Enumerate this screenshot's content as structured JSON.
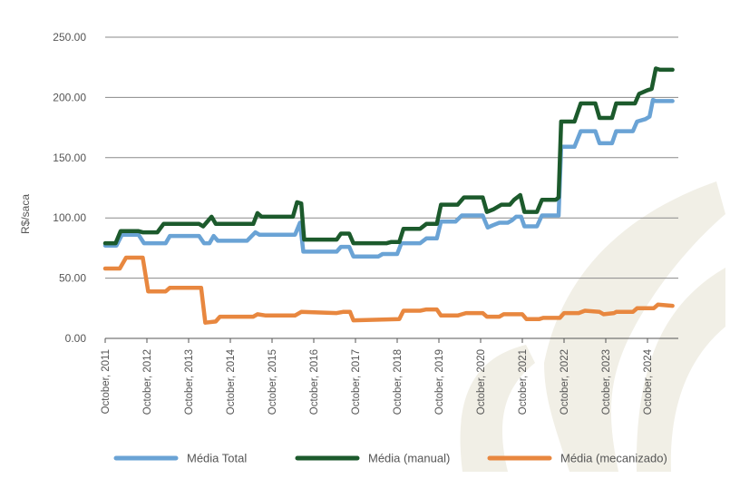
{
  "chart_data": {
    "type": "line",
    "ylabel": "R$/saca",
    "xlabel": "",
    "ylim": [
      0,
      250
    ],
    "yticks": [
      "250.00",
      "200.00",
      "150.00",
      "100.00",
      "50.00",
      "0.00"
    ],
    "x_tick_labels": [
      "October, 2011",
      "October, 2012",
      "October, 2013",
      "October, 2014",
      "October, 2015",
      "October, 2016",
      "October, 2017",
      "October, 2018",
      "October, 2019",
      "October, 2020",
      "October, 2021",
      "October, 2022",
      "October, 2023",
      "October, 2024"
    ],
    "x_range": [
      2011.75,
      2025.4
    ],
    "grid": "horizontal",
    "legend_position": "bottom",
    "series": [
      {
        "name": "Média Total",
        "color": "#6aa3d5",
        "points": [
          [
            2011.75,
            77
          ],
          [
            2012.02,
            77
          ],
          [
            2012.15,
            86
          ],
          [
            2012.55,
            86
          ],
          [
            2012.68,
            79
          ],
          [
            2013.2,
            79
          ],
          [
            2013.3,
            85
          ],
          [
            2014.0,
            85
          ],
          [
            2014.12,
            79
          ],
          [
            2014.25,
            79
          ],
          [
            2014.35,
            85
          ],
          [
            2014.45,
            81
          ],
          [
            2015.0,
            81
          ],
          [
            2015.15,
            81
          ],
          [
            2015.35,
            88
          ],
          [
            2015.45,
            86
          ],
          [
            2016.3,
            86
          ],
          [
            2016.42,
            96
          ],
          [
            2016.5,
            72
          ],
          [
            2017.3,
            72
          ],
          [
            2017.4,
            76
          ],
          [
            2017.6,
            76
          ],
          [
            2017.7,
            68
          ],
          [
            2018.3,
            68
          ],
          [
            2018.4,
            70
          ],
          [
            2018.75,
            70
          ],
          [
            2018.85,
            79
          ],
          [
            2019.3,
            79
          ],
          [
            2019.45,
            83
          ],
          [
            2019.7,
            83
          ],
          [
            2019.8,
            97
          ],
          [
            2020.15,
            97
          ],
          [
            2020.3,
            102
          ],
          [
            2020.8,
            102
          ],
          [
            2020.92,
            92
          ],
          [
            2021.05,
            94
          ],
          [
            2021.2,
            96
          ],
          [
            2021.4,
            96
          ],
          [
            2021.5,
            98
          ],
          [
            2021.6,
            101
          ],
          [
            2021.72,
            101
          ],
          [
            2021.8,
            93
          ],
          [
            2022.1,
            93
          ],
          [
            2022.22,
            102
          ],
          [
            2022.55,
            102
          ],
          [
            2022.62,
            102
          ],
          [
            2022.68,
            159
          ],
          [
            2023.0,
            159
          ],
          [
            2023.15,
            172
          ],
          [
            2023.5,
            172
          ],
          [
            2023.6,
            162
          ],
          [
            2023.9,
            162
          ],
          [
            2024.0,
            172
          ],
          [
            2024.4,
            172
          ],
          [
            2024.5,
            180
          ],
          [
            2024.7,
            182
          ],
          [
            2024.8,
            184
          ],
          [
            2024.88,
            198
          ],
          [
            2024.95,
            197
          ],
          [
            2025.35,
            197
          ]
        ]
      },
      {
        "name": "Média (manual)",
        "color": "#1c5a2c",
        "points": [
          [
            2011.75,
            79
          ],
          [
            2012.0,
            79
          ],
          [
            2012.12,
            89
          ],
          [
            2012.55,
            89
          ],
          [
            2012.65,
            88
          ],
          [
            2013.0,
            88
          ],
          [
            2013.15,
            95
          ],
          [
            2014.0,
            95
          ],
          [
            2014.1,
            93
          ],
          [
            2014.3,
            101
          ],
          [
            2014.4,
            95
          ],
          [
            2015.3,
            95
          ],
          [
            2015.4,
            104
          ],
          [
            2015.5,
            101
          ],
          [
            2016.25,
            101
          ],
          [
            2016.35,
            113
          ],
          [
            2016.45,
            112
          ],
          [
            2016.52,
            82
          ],
          [
            2017.3,
            82
          ],
          [
            2017.4,
            87
          ],
          [
            2017.6,
            87
          ],
          [
            2017.7,
            79
          ],
          [
            2018.5,
            79
          ],
          [
            2018.6,
            80
          ],
          [
            2018.8,
            80
          ],
          [
            2018.9,
            91
          ],
          [
            2019.3,
            91
          ],
          [
            2019.45,
            95
          ],
          [
            2019.7,
            95
          ],
          [
            2019.8,
            111
          ],
          [
            2020.2,
            111
          ],
          [
            2020.35,
            117
          ],
          [
            2020.8,
            117
          ],
          [
            2020.9,
            105
          ],
          [
            2021.05,
            107
          ],
          [
            2021.25,
            111
          ],
          [
            2021.45,
            111
          ],
          [
            2021.55,
            115
          ],
          [
            2021.7,
            119
          ],
          [
            2021.8,
            105
          ],
          [
            2022.1,
            105
          ],
          [
            2022.22,
            115
          ],
          [
            2022.55,
            115
          ],
          [
            2022.62,
            117
          ],
          [
            2022.68,
            180
          ],
          [
            2023.0,
            180
          ],
          [
            2023.15,
            195
          ],
          [
            2023.5,
            195
          ],
          [
            2023.6,
            183
          ],
          [
            2023.9,
            183
          ],
          [
            2024.0,
            195
          ],
          [
            2024.45,
            195
          ],
          [
            2024.55,
            203
          ],
          [
            2024.75,
            206
          ],
          [
            2024.85,
            207
          ],
          [
            2024.95,
            224
          ],
          [
            2025.05,
            223
          ],
          [
            2025.35,
            223
          ]
        ]
      },
      {
        "name": "Média (mecanizado)",
        "color": "#e8873f",
        "points": [
          [
            2011.75,
            58
          ],
          [
            2012.1,
            58
          ],
          [
            2012.25,
            67
          ],
          [
            2012.65,
            67
          ],
          [
            2012.78,
            39
          ],
          [
            2013.2,
            39
          ],
          [
            2013.3,
            42
          ],
          [
            2014.05,
            42
          ],
          [
            2014.15,
            13
          ],
          [
            2014.4,
            14
          ],
          [
            2014.5,
            18
          ],
          [
            2015.3,
            18
          ],
          [
            2015.4,
            20
          ],
          [
            2015.6,
            19
          ],
          [
            2016.3,
            19
          ],
          [
            2016.45,
            22
          ],
          [
            2017.3,
            21
          ],
          [
            2017.45,
            22
          ],
          [
            2017.62,
            22
          ],
          [
            2017.7,
            15
          ],
          [
            2018.8,
            16
          ],
          [
            2018.9,
            23
          ],
          [
            2019.3,
            23
          ],
          [
            2019.45,
            24
          ],
          [
            2019.7,
            24
          ],
          [
            2019.8,
            19
          ],
          [
            2020.2,
            19
          ],
          [
            2020.4,
            21
          ],
          [
            2020.8,
            21
          ],
          [
            2020.9,
            18
          ],
          [
            2021.2,
            18
          ],
          [
            2021.3,
            20
          ],
          [
            2021.75,
            20
          ],
          [
            2021.85,
            16
          ],
          [
            2022.15,
            16
          ],
          [
            2022.25,
            17
          ],
          [
            2022.65,
            17
          ],
          [
            2022.75,
            21
          ],
          [
            2023.1,
            21
          ],
          [
            2023.25,
            23
          ],
          [
            2023.6,
            22
          ],
          [
            2023.7,
            20
          ],
          [
            2023.95,
            21
          ],
          [
            2024.0,
            22
          ],
          [
            2024.4,
            22
          ],
          [
            2024.5,
            25
          ],
          [
            2024.9,
            25
          ],
          [
            2025.0,
            28
          ],
          [
            2025.35,
            27
          ]
        ]
      }
    ]
  }
}
